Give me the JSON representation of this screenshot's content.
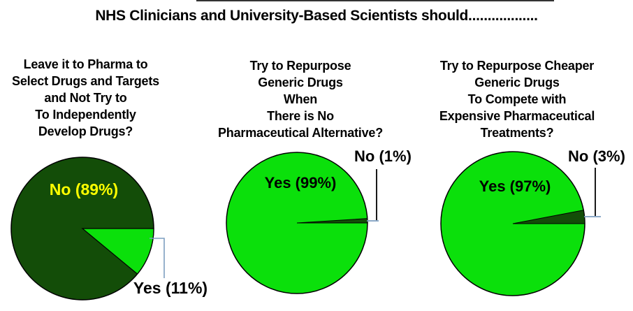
{
  "header": {
    "title": "NHS Clinicians and University-Based Scientists should.................."
  },
  "colors": {
    "bright_green": "#0BE00B",
    "dark_green": "#134D08",
    "yellow_label": "#FFFF00",
    "leader_line_blue": "#7D9EC0",
    "leader_line_black": "#1A1A1A",
    "text_black": "#000000",
    "pie_outline": "#000000"
  },
  "charts": [
    {
      "question": "Leave it to Pharma to\nSelect Drugs and Targets\nand Not Try to\nTo Independently\nDevelop Drugs?",
      "slices": [
        {
          "answer": "No",
          "percent": 89,
          "label": "No (89%)"
        },
        {
          "answer": "Yes",
          "percent": 11,
          "label": "Yes (11%)"
        }
      ]
    },
    {
      "question": "Try to Repurpose\nGeneric Drugs\nWhen\nThere is No\nPharmaceutical Alternative?",
      "slices": [
        {
          "answer": "Yes",
          "percent": 99,
          "label": "Yes (99%)"
        },
        {
          "answer": "No",
          "percent": 1,
          "label": "No (1%)"
        }
      ]
    },
    {
      "question": "Try to Repurpose Cheaper\nGeneric Drugs\nTo Compete with\nExpensive Pharmaceutical\nTreatments?",
      "slices": [
        {
          "answer": "Yes",
          "percent": 97,
          "label": "Yes (97%)"
        },
        {
          "answer": "No",
          "percent": 3,
          "label": "No (3%)"
        }
      ]
    }
  ],
  "chart_data": [
    {
      "type": "pie",
      "title": "Leave it to Pharma to Select Drugs and Targets and Not Try to To Independently Develop Drugs?",
      "labels": [
        "No",
        "Yes"
      ],
      "values": [
        89,
        11
      ],
      "colors": [
        "#134D08",
        "#0BE00B"
      ],
      "minority_index": 1,
      "minority_direction": "down",
      "legend": "none",
      "data_labels": "inside-majority-and-callout-minority"
    },
    {
      "type": "pie",
      "title": "Try to Repurpose Generic Drugs When There is No Pharmaceutical Alternative?",
      "labels": [
        "Yes",
        "No"
      ],
      "values": [
        99,
        1
      ],
      "colors": [
        "#0BE00B",
        "#134D08"
      ],
      "minority_index": 1,
      "minority_direction": "up",
      "legend": "none",
      "data_labels": "inside-majority-and-callout-minority"
    },
    {
      "type": "pie",
      "title": "Try to Repurpose Cheaper Generic Drugs To Compete with Expensive Pharmaceutical Treatments?",
      "labels": [
        "Yes",
        "No"
      ],
      "values": [
        97,
        3
      ],
      "colors": [
        "#0BE00B",
        "#134D08"
      ],
      "minority_index": 1,
      "minority_direction": "up",
      "legend": "none",
      "data_labels": "inside-majority-and-callout-minority"
    }
  ]
}
